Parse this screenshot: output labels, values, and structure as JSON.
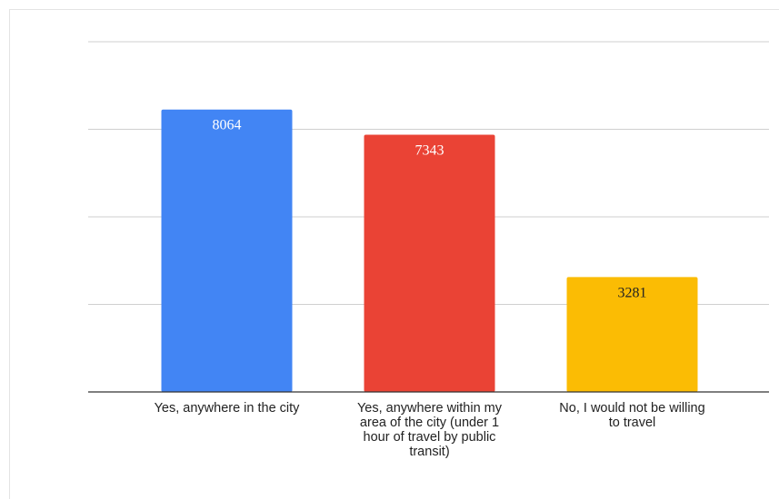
{
  "chart_data": {
    "type": "bar",
    "categories": [
      "Yes, anywhere in the city",
      "Yes, anywhere within my area of the city (under 1 hour of travel by public transit)",
      "No, I would not be willing to travel"
    ],
    "category_label_lines": [
      [
        "Yes, anywhere in the city"
      ],
      [
        "Yes, anywhere within my",
        "area of the city (under 1",
        "hour of travel by public",
        "transit)"
      ],
      [
        "No, I would not be willing",
        "to travel"
      ]
    ],
    "values": [
      8064,
      7343,
      3281
    ],
    "colors": [
      "#4285f4",
      "#ea4335",
      "#fbbc04"
    ],
    "data_label_colors": [
      "#ffffff",
      "#ffffff",
      "#222222"
    ],
    "ylim": [
      0,
      10000
    ],
    "y_gridlines": [
      0,
      2500,
      5000,
      7500,
      10000
    ],
    "grid": true,
    "legend": "none",
    "title": "",
    "xlabel": "",
    "ylabel": ""
  }
}
